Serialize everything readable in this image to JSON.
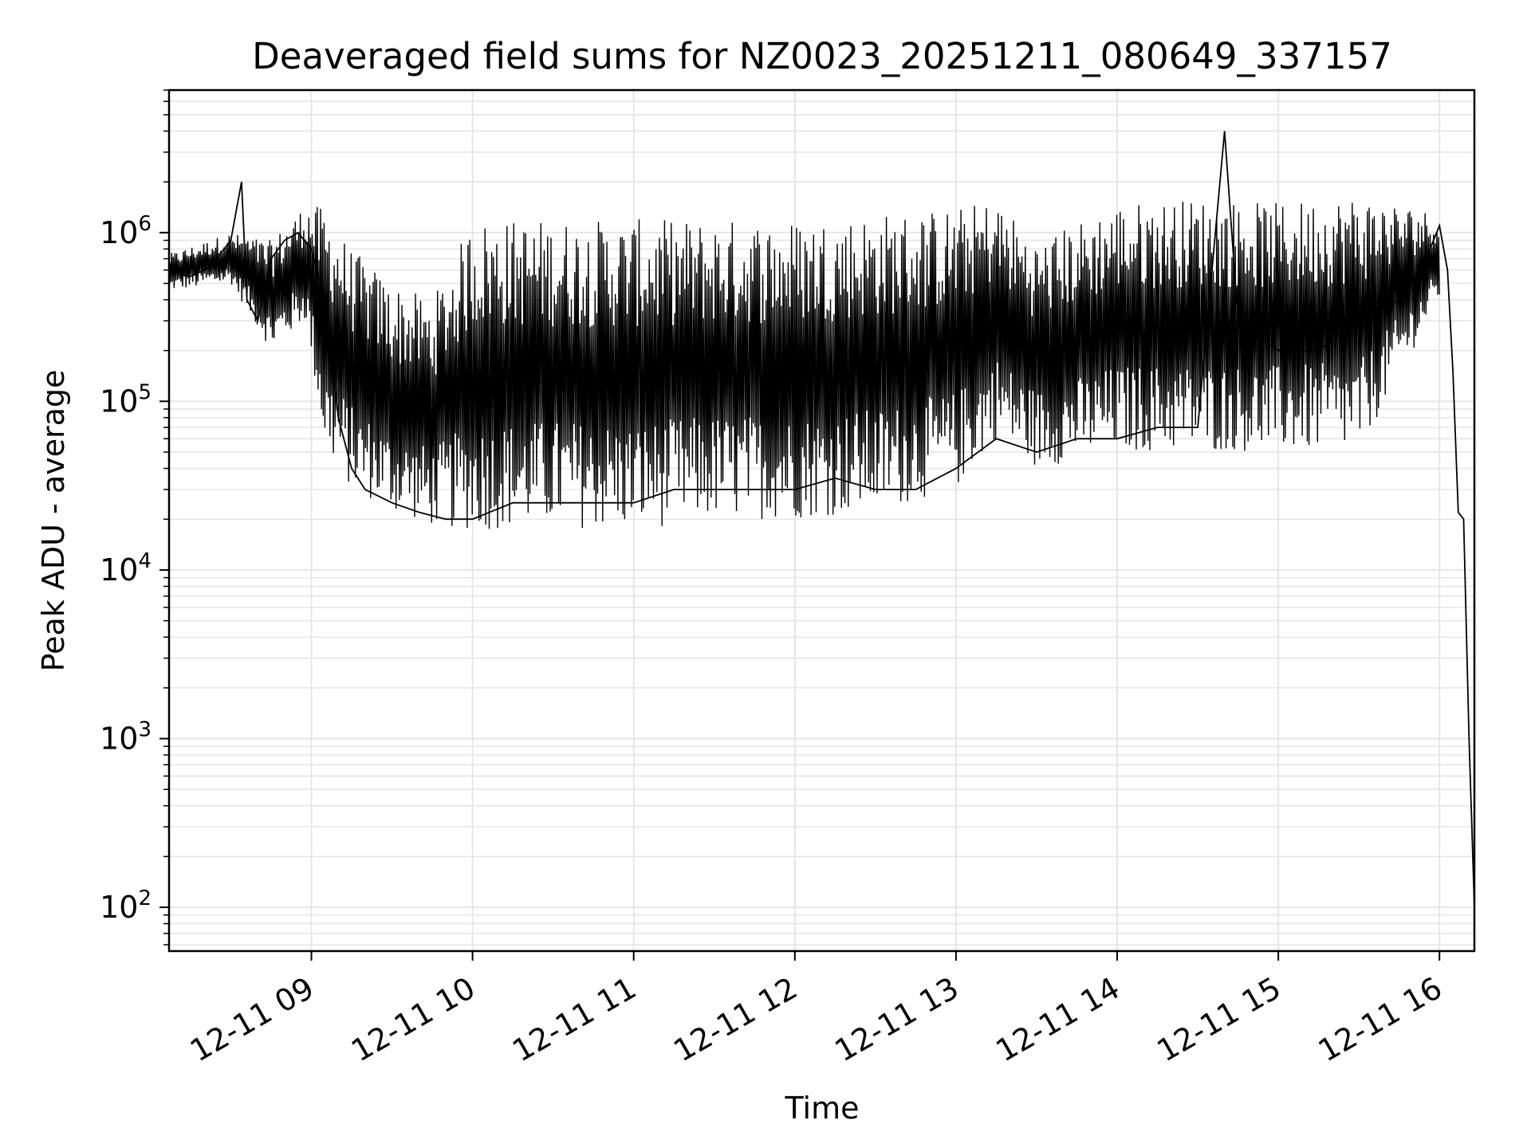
{
  "chart_data": {
    "type": "line",
    "title": "Deaveraged field sums for NZ0023_20251211_080649_337157",
    "xlabel": "Time",
    "ylabel": "Peak ADU - average",
    "y_scale": "log",
    "ylim": [
      55,
      7000000
    ],
    "xlim": [
      "2025-12-11 08:07",
      "2025-12-11 16:13"
    ],
    "grid": true,
    "line_color": "#000000",
    "grid_color": "#e6e6e6",
    "x_ticks": [
      {
        "value": "2025-12-11 09:00",
        "label": "12-11 09"
      },
      {
        "value": "2025-12-11 10:00",
        "label": "12-11 10"
      },
      {
        "value": "2025-12-11 11:00",
        "label": "12-11 11"
      },
      {
        "value": "2025-12-11 12:00",
        "label": "12-11 12"
      },
      {
        "value": "2025-12-11 13:00",
        "label": "12-11 13"
      },
      {
        "value": "2025-12-11 14:00",
        "label": "12-11 14"
      },
      {
        "value": "2025-12-11 15:00",
        "label": "12-11 15"
      },
      {
        "value": "2025-12-11 16:00",
        "label": "12-11 16"
      }
    ],
    "y_ticks": [
      {
        "value": 100,
        "base": "10",
        "exp": "2"
      },
      {
        "value": 1000,
        "base": "10",
        "exp": "3"
      },
      {
        "value": 10000,
        "base": "10",
        "exp": "4"
      },
      {
        "value": 100000,
        "base": "10",
        "exp": "5"
      },
      {
        "value": 1000000,
        "base": "10",
        "exp": "6"
      }
    ],
    "series": [
      {
        "x": [
          "2025-12-11 08:07",
          "2025-12-11 08:15",
          "2025-12-11 08:22",
          "2025-12-11 08:30",
          "2025-12-11 08:34",
          "2025-12-11 08:36",
          "2025-12-11 08:40",
          "2025-12-11 08:45",
          "2025-12-11 08:50",
          "2025-12-11 08:55",
          "2025-12-11 09:00",
          "2025-12-11 09:05",
          "2025-12-11 09:10",
          "2025-12-11 09:15",
          "2025-12-11 09:20",
          "2025-12-11 09:30",
          "2025-12-11 09:40",
          "2025-12-11 09:50",
          "2025-12-11 10:00",
          "2025-12-11 10:15",
          "2025-12-11 10:30",
          "2025-12-11 10:45",
          "2025-12-11 11:00",
          "2025-12-11 11:15",
          "2025-12-11 11:30",
          "2025-12-11 11:45",
          "2025-12-11 12:00",
          "2025-12-11 12:15",
          "2025-12-11 12:30",
          "2025-12-11 12:45",
          "2025-12-11 13:00",
          "2025-12-11 13:15",
          "2025-12-11 13:30",
          "2025-12-11 13:45",
          "2025-12-11 14:00",
          "2025-12-11 14:15",
          "2025-12-11 14:30",
          "2025-12-11 14:40",
          "2025-12-11 14:45",
          "2025-12-11 15:00",
          "2025-12-11 15:15",
          "2025-12-11 15:30",
          "2025-12-11 15:45",
          "2025-12-11 15:55",
          "2025-12-11 16:00",
          "2025-12-11 16:03",
          "2025-12-11 16:05",
          "2025-12-11 16:07",
          "2025-12-11 16:09",
          "2025-12-11 16:11",
          "2025-12-11 16:13"
        ],
        "y": [
          600000,
          550000,
          620000,
          900000,
          2000000,
          400000,
          300000,
          700000,
          900000,
          1000000,
          800000,
          400000,
          80000,
          40000,
          30000,
          25000,
          22000,
          20000,
          20000,
          25000,
          25000,
          25000,
          25000,
          30000,
          30000,
          30000,
          30000,
          35000,
          30000,
          30000,
          40000,
          60000,
          50000,
          60000,
          60000,
          70000,
          70000,
          4000000,
          300000,
          200000,
          200000,
          300000,
          400000,
          700000,
          1100000,
          600000,
          150000,
          22000,
          20000,
          1000,
          100
        ]
      }
    ],
    "envelope": {
      "x": [
        "2025-12-11 08:07",
        "2025-12-11 08:30",
        "2025-12-11 08:45",
        "2025-12-11 08:58",
        "2025-12-11 09:05",
        "2025-12-11 09:15",
        "2025-12-11 09:30",
        "2025-12-11 09:45",
        "2025-12-11 10:00",
        "2025-12-11 10:30",
        "2025-12-11 11:00",
        "2025-12-11 11:30",
        "2025-12-11 12:00",
        "2025-12-11 12:30",
        "2025-12-11 13:00",
        "2025-12-11 13:15",
        "2025-12-11 13:30",
        "2025-12-11 14:00",
        "2025-12-11 14:30",
        "2025-12-11 15:00",
        "2025-12-11 15:30",
        "2025-12-11 16:00"
      ],
      "high": [
        750000,
        1000000,
        900000,
        1500000,
        1400000,
        800000,
        500000,
        400000,
        1200000,
        1200000,
        1200000,
        1200000,
        1200000,
        1300000,
        1400000,
        1600000,
        900000,
        1500000,
        1600000,
        1500000,
        1700000,
        1300000
      ],
      "low": [
        450000,
        500000,
        200000,
        300000,
        50000,
        30000,
        22000,
        18000,
        17000,
        18000,
        17000,
        20000,
        20000,
        22000,
        30000,
        60000,
        40000,
        50000,
        50000,
        50000,
        50000,
        400000
      ]
    }
  }
}
